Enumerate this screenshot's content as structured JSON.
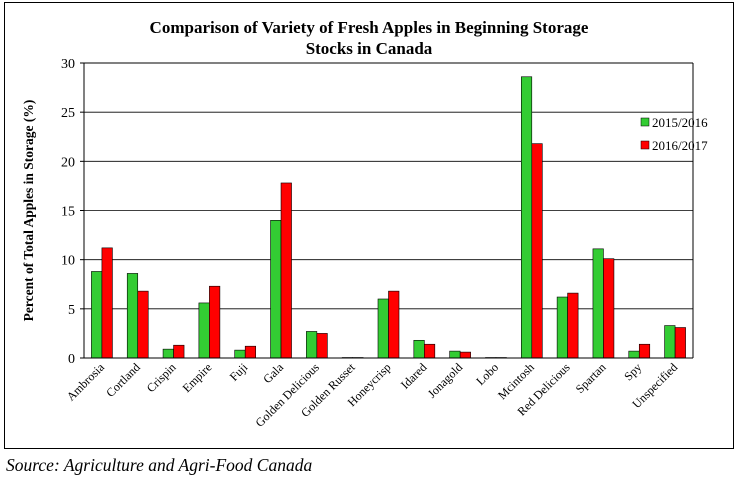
{
  "chart_data": {
    "type": "bar",
    "title_lines": [
      "Comparison of Variety of Fresh Apples in Beginning Storage",
      "Stocks in Canada"
    ],
    "ylabel": "Percent of Total Apples in Storage (%)",
    "xlabel": "",
    "ylim": [
      0,
      30
    ],
    "yticks": [
      0,
      5,
      10,
      15,
      20,
      25,
      30
    ],
    "categories": [
      "Ambrosia",
      "Cortland",
      "Crispin",
      "Empire",
      "Fuji",
      "Gala",
      "Golden Delicious",
      "Golden Russet",
      "Honeycrisp",
      "Idared",
      "Jonagold",
      "Lobo",
      "Mcintosh",
      "Red Delicious",
      "Spartan",
      "Spy",
      "Unspecified"
    ],
    "series": [
      {
        "name": "2015/2016",
        "color": "#33cc33",
        "values": [
          8.8,
          8.6,
          0.9,
          5.6,
          0.8,
          14.0,
          2.7,
          0.05,
          6.0,
          1.8,
          0.7,
          0.05,
          28.6,
          6.2,
          11.1,
          0.7,
          3.3
        ]
      },
      {
        "name": "2016/2017",
        "color": "#ff0000",
        "values": [
          11.2,
          6.8,
          1.3,
          7.3,
          1.2,
          17.8,
          2.5,
          0.05,
          6.8,
          1.4,
          0.6,
          0.05,
          21.8,
          6.6,
          10.1,
          1.4,
          3.1
        ]
      }
    ],
    "grid": "horizontal",
    "legend_position": "right"
  },
  "source": "Source: Agriculture and Agri-Food Canada"
}
